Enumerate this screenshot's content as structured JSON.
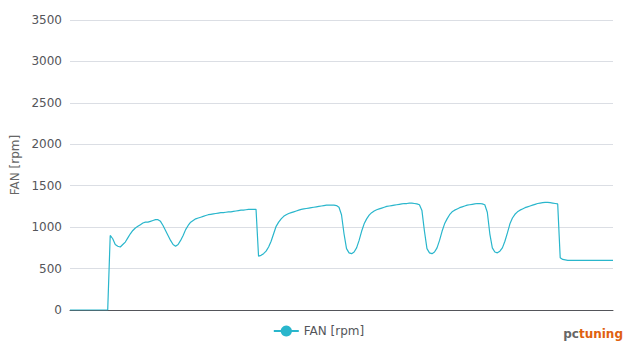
{
  "chart_data": {
    "type": "line",
    "ylabel": "FAN [rpm]",
    "ylim": [
      0,
      3500
    ],
    "yticks": [
      0,
      500,
      1000,
      1500,
      2000,
      2500,
      3000,
      3500
    ],
    "grid": true,
    "legend": "bottom",
    "tick_labels": "y",
    "annotations": [
      {
        "text": "pc",
        "color": "#666666"
      },
      {
        "text": "tuning",
        "color": "#e06010"
      }
    ],
    "series": [
      {
        "name": "FAN [rpm]",
        "color": "#29b6cc",
        "values": [
          0,
          0,
          0,
          0,
          0,
          0,
          0,
          0,
          0,
          0,
          0,
          0,
          0,
          0,
          0,
          0,
          900,
          860,
          790,
          770,
          760,
          790,
          820,
          870,
          920,
          960,
          990,
          1010,
          1030,
          1050,
          1060,
          1060,
          1070,
          1080,
          1090,
          1090,
          1070,
          1020,
          960,
          900,
          840,
          790,
          770,
          790,
          840,
          900,
          970,
          1020,
          1060,
          1080,
          1100,
          1110,
          1120,
          1130,
          1140,
          1150,
          1155,
          1160,
          1165,
          1170,
          1175,
          1175,
          1180,
          1185,
          1185,
          1190,
          1195,
          1200,
          1205,
          1205,
          1210,
          1215,
          1215,
          1215,
          1215,
          650,
          660,
          680,
          710,
          760,
          830,
          920,
          1010,
          1060,
          1100,
          1130,
          1150,
          1165,
          1175,
          1185,
          1195,
          1205,
          1215,
          1220,
          1225,
          1230,
          1235,
          1240,
          1245,
          1250,
          1255,
          1260,
          1265,
          1265,
          1265,
          1265,
          1260,
          1240,
          1150,
          920,
          740,
          690,
          680,
          700,
          750,
          840,
          950,
          1040,
          1100,
          1145,
          1175,
          1195,
          1210,
          1220,
          1230,
          1240,
          1250,
          1255,
          1260,
          1265,
          1270,
          1275,
          1280,
          1285,
          1285,
          1290,
          1290,
          1285,
          1280,
          1270,
          1200,
          950,
          740,
          690,
          680,
          700,
          750,
          840,
          950,
          1040,
          1100,
          1150,
          1185,
          1205,
          1220,
          1235,
          1245,
          1255,
          1265,
          1270,
          1275,
          1280,
          1285,
          1285,
          1280,
          1270,
          1180,
          920,
          750,
          700,
          690,
          710,
          750,
          830,
          930,
          1040,
          1110,
          1155,
          1185,
          1205,
          1220,
          1235,
          1245,
          1255,
          1265,
          1275,
          1285,
          1290,
          1295,
          1300,
          1300,
          1295,
          1290,
          1285,
          1280,
          630,
          610,
          605,
          600,
          600,
          600,
          600,
          600,
          600,
          600,
          600,
          600,
          600,
          600,
          600,
          600,
          600,
          600,
          600,
          600,
          600,
          600
        ]
      }
    ]
  }
}
